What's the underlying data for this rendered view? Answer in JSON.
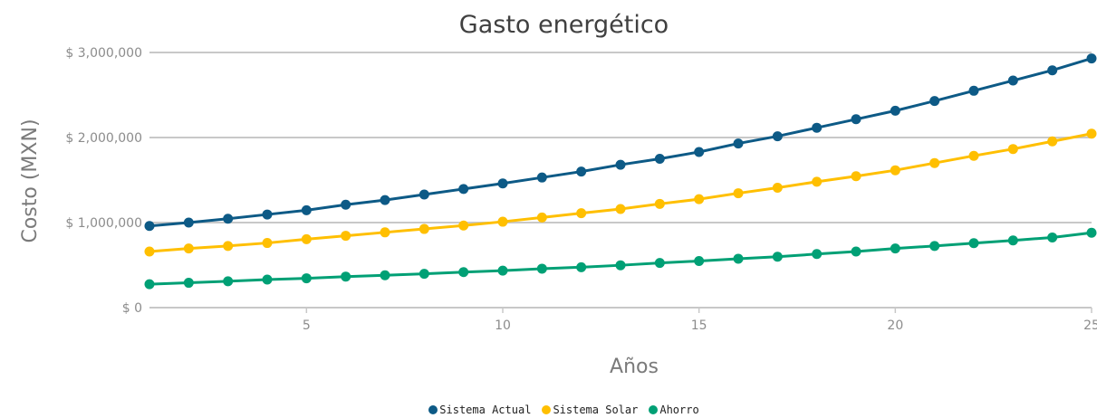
{
  "chart_data": {
    "type": "line",
    "title": "Gasto energético",
    "xlabel": "Años",
    "ylabel": "Costo (MXN)",
    "xlim": [
      1,
      25
    ],
    "ylim": [
      0,
      3000000
    ],
    "x_ticks": [
      "5",
      "10",
      "15",
      "20",
      "25"
    ],
    "y_ticks": [
      "$ 0",
      "$ 1,000,000",
      "$ 2,000,000",
      "$ 3,000,000"
    ],
    "grid": "horizontal",
    "legend_position": "bottom",
    "x": [
      1,
      2,
      3,
      4,
      5,
      6,
      7,
      8,
      9,
      10,
      11,
      12,
      13,
      14,
      15,
      16,
      17,
      18,
      19,
      20,
      21,
      22,
      23,
      24,
      25
    ],
    "series": [
      {
        "name": "Sistema Actual",
        "color": "#0d5a86",
        "values": [
          960000,
          1000000,
          1045000,
          1095000,
          1145000,
          1210000,
          1265000,
          1330000,
          1395000,
          1460000,
          1530000,
          1600000,
          1680000,
          1750000,
          1830000,
          1930000,
          2015000,
          2115000,
          2215000,
          2315000,
          2430000,
          2550000,
          2670000,
          2790000,
          2930000
        ]
      },
      {
        "name": "Sistema Solar",
        "color": "#ffbf00",
        "values": [
          660000,
          695000,
          725000,
          760000,
          805000,
          845000,
          885000,
          925000,
          965000,
          1010000,
          1060000,
          1110000,
          1160000,
          1220000,
          1275000,
          1345000,
          1410000,
          1480000,
          1545000,
          1615000,
          1700000,
          1785000,
          1865000,
          1955000,
          2045000
        ]
      },
      {
        "name": "Ahorro",
        "color": "#00a075",
        "values": [
          275000,
          292000,
          310000,
          330000,
          345000,
          365000,
          380000,
          398000,
          418000,
          435000,
          458000,
          475000,
          498000,
          525000,
          548000,
          575000,
          598000,
          630000,
          660000,
          695000,
          725000,
          758000,
          790000,
          825000,
          880000
        ]
      }
    ]
  }
}
